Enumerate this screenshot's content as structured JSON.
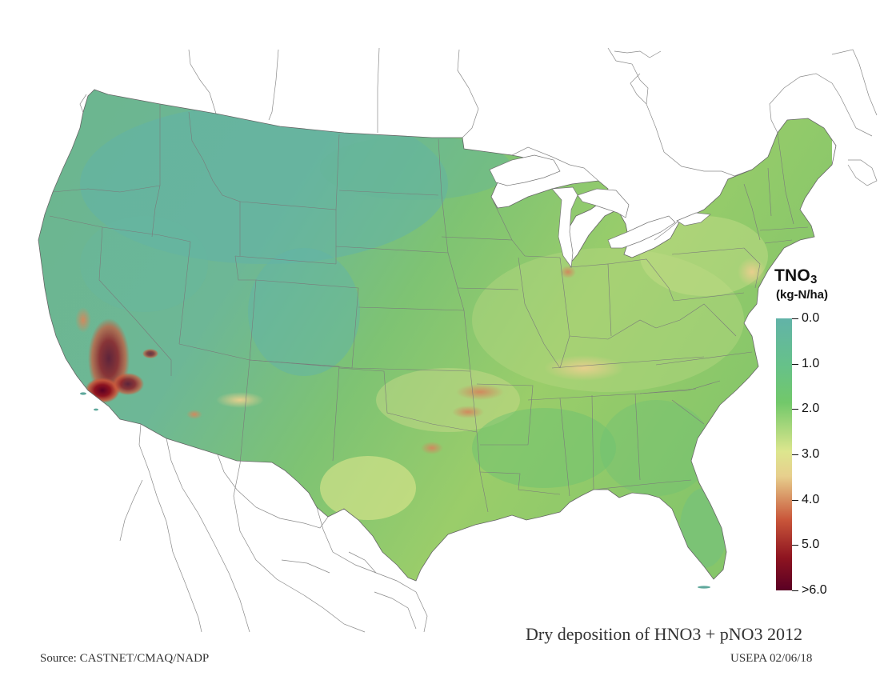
{
  "map": {
    "title": "Dry deposition of HNO3 + pNO3 2012",
    "source": "Source: CASTNET/CMAQ/NADP",
    "credit": "USEPA 02/06/18"
  },
  "legend": {
    "title_main": "TNO",
    "title_sub": "3",
    "units": "(kg-N/ha)",
    "labels": [
      "0.0",
      "1.0",
      "2.0",
      "3.0",
      "4.0",
      "5.0",
      ">6.0"
    ],
    "colors": [
      "#62b3a8",
      "#66c18a",
      "#72c86a",
      "#dde68e",
      "#e7cf8d",
      "#c9563a",
      "#8e1420",
      "#5a0024"
    ]
  }
}
